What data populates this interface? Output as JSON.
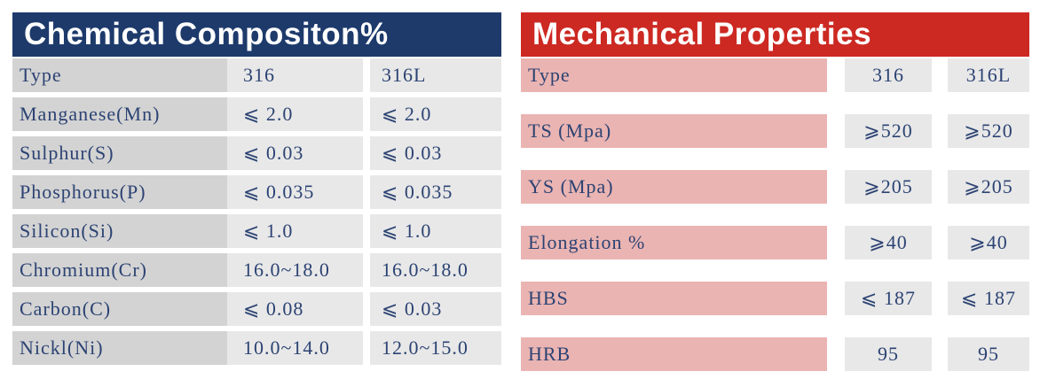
{
  "colors": {
    "chemical_header_bg": "#1d3a6b",
    "mechanical_header_bg": "#cc2922",
    "mechanical_label_bg": "#eab4b2",
    "chemical_label_bg": "#d3d3d3",
    "value_cell_bg": "#e8e8e8",
    "cell_text": "#2c4373",
    "header_text": "#ffffff",
    "page_bg": "#ffffff"
  },
  "chemical_table": {
    "title": "Chemical Compositon%",
    "rows": [
      {
        "label": "Type",
        "v316": "316",
        "v316l": "316L"
      },
      {
        "label": "Manganese(Mn)",
        "v316": "⩽ 2.0",
        "v316l": "⩽ 2.0"
      },
      {
        "label": "Sulphur(S)",
        "v316": "⩽ 0.03",
        "v316l": "⩽ 0.03"
      },
      {
        "label": "Phosphorus(P)",
        "v316": "⩽ 0.035",
        "v316l": "⩽ 0.035"
      },
      {
        "label": "Silicon(Si)",
        "v316": "⩽ 1.0",
        "v316l": "⩽ 1.0"
      },
      {
        "label": "Chromium(Cr)",
        "v316": "16.0~18.0",
        "v316l": "16.0~18.0"
      },
      {
        "label": "Carbon(C)",
        "v316": "⩽ 0.08",
        "v316l": "⩽ 0.03"
      },
      {
        "label": "Nickl(Ni)",
        "v316": "10.0~14.0",
        "v316l": "12.0~15.0"
      }
    ]
  },
  "mechanical_table": {
    "title": "Mechanical Properties",
    "rows": [
      {
        "label": "Type",
        "v316": "316",
        "v316l": "316L"
      },
      {
        "label": "TS (Mpa)",
        "v316": "⩾520",
        "v316l": "⩾520"
      },
      {
        "label": "YS (Mpa)",
        "v316": "⩾205",
        "v316l": "⩾205"
      },
      {
        "label": "Elongation %",
        "v316": "⩾40",
        "v316l": "⩾40"
      },
      {
        "label": "HBS",
        "v316": "⩽ 187",
        "v316l": "⩽ 187"
      },
      {
        "label": "HRB",
        "v316": "95",
        "v316l": "95"
      }
    ]
  }
}
